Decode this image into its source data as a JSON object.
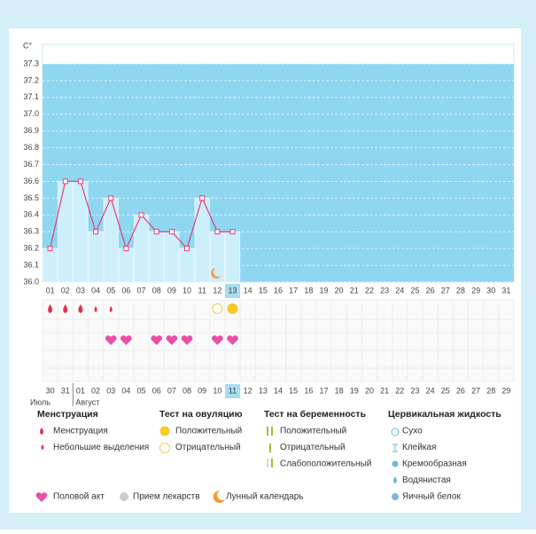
{
  "chart_data": {
    "type": "line",
    "y_label": "C°",
    "color": "#e0407a",
    "categories": [
      "01",
      "02",
      "03",
      "04",
      "05",
      "06",
      "07",
      "08",
      "09",
      "10",
      "11",
      "12",
      "13",
      "14",
      "15",
      "16",
      "17",
      "18",
      "19",
      "20",
      "21",
      "22",
      "23",
      "24",
      "25",
      "26",
      "27",
      "28",
      "29",
      "30",
      "31"
    ],
    "values": [
      36.2,
      36.6,
      36.6,
      36.3,
      36.5,
      36.2,
      36.4,
      36.3,
      36.3,
      36.2,
      36.5,
      36.3,
      36.3,
      null,
      null,
      null,
      null,
      null,
      null,
      null,
      null,
      null,
      null,
      null,
      null,
      null,
      null,
      null,
      null,
      null,
      null
    ],
    "ylim": [
      36.0,
      37.3
    ],
    "yticks": [
      {
        "value": 36.0,
        "label": "36.0"
      },
      36.1,
      36.2,
      36.3,
      36.4,
      36.5,
      36.6,
      36.7,
      36.8,
      36.9,
      {
        "value": 37.0,
        "label": "37.0"
      },
      37.1,
      37.2,
      37.3
    ],
    "grid": true,
    "today": "13"
  },
  "marks": {
    "menstruation": [
      "01",
      "02",
      "03"
    ],
    "spotting": [
      "04",
      "05"
    ],
    "ovulation_negative": [
      "12"
    ],
    "ovulation_positive": [
      "13"
    ],
    "sex": [
      "05",
      "06",
      "08",
      "09",
      "10",
      "12",
      "13"
    ],
    "lunar": [
      "12"
    ]
  },
  "dates": [
    "30",
    "31",
    "01",
    "02",
    "03",
    "04",
    "05",
    "06",
    "07",
    "08",
    "09",
    "10",
    "11",
    "12",
    "13",
    "14",
    "15",
    "16",
    "17",
    "18",
    "19",
    "20",
    "21",
    "22",
    "23",
    "24",
    "25",
    "26",
    "27",
    "28",
    "29"
  ],
  "red_dates": [
    "01",
    "02",
    "08",
    "09",
    "15",
    "16",
    "22",
    "23",
    "29"
  ],
  "months": [
    "Июль",
    "Август"
  ],
  "legend": {
    "groups": [
      {
        "title": "Менструация",
        "items": [
          "Менструация",
          "Небольшие выделения"
        ]
      },
      {
        "title": "Тест на овуляцию",
        "items": [
          "Положительный",
          "Отрицательный"
        ]
      },
      {
        "title": "Тест на беременность",
        "items": [
          "Положительный",
          "Отрицательный",
          "Слабоположительный"
        ]
      },
      {
        "title": "Цервикальная жидкость",
        "items": [
          "Сухо",
          "Клейкая",
          "Кремообразная",
          "Водянистая",
          "Яичный белок"
        ]
      }
    ],
    "bottom": [
      "Половой акт",
      "Прием лекарств",
      "Лунный календарь"
    ]
  }
}
